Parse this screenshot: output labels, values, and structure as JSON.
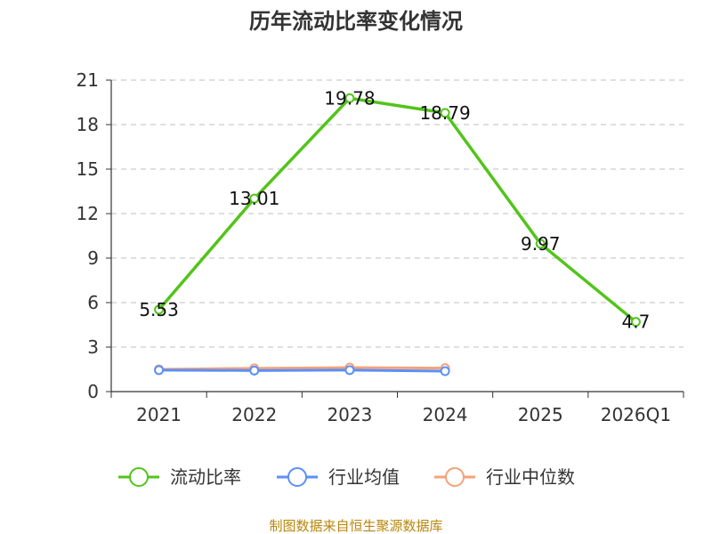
{
  "chart_data": {
    "type": "line",
    "title": "历年流动比率变化情况",
    "categories": [
      "2021",
      "2022",
      "2023",
      "2024",
      "2025",
      "2026Q1"
    ],
    "ylim": [
      0,
      21
    ],
    "yticks": [
      "0",
      "3",
      "6",
      "9",
      "12",
      "15",
      "18",
      "21"
    ],
    "grid": true,
    "legend_position": "bottom",
    "series": [
      {
        "name": "流动比率",
        "color": "#52c41a",
        "values": [
          5.53,
          13.01,
          19.78,
          18.79,
          9.97,
          4.7
        ],
        "labels": [
          "5.53",
          "13.01",
          "19.78",
          "18.79",
          "9.97",
          "4.7"
        ]
      },
      {
        "name": "行业均值",
        "color": "#5b8ff9",
        "values": [
          1.45,
          1.42,
          1.45,
          1.38,
          null,
          null
        ]
      },
      {
        "name": "行业中位数",
        "color": "#f4a27a",
        "values": [
          1.5,
          1.57,
          1.62,
          1.58,
          null,
          null
        ]
      }
    ],
    "source": "制图数据来自恒生聚源数据库"
  }
}
